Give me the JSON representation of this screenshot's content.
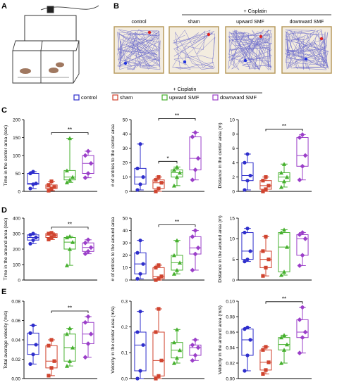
{
  "panel_letters": {
    "A": "A",
    "B": "B",
    "C": "C",
    "D": "D",
    "E": "E"
  },
  "cisplatin_label": "+ Cisplatin",
  "track_titles": [
    "control",
    "sham",
    "upward SMF",
    "downward SMF"
  ],
  "legend": [
    {
      "label": "control",
      "color": "#2e2ecc"
    },
    {
      "label": "sham",
      "color": "#d0442f"
    },
    {
      "label": "upward SMF",
      "color": "#46b02e"
    },
    {
      "label": "downward SMF",
      "color": "#9b3fc9"
    }
  ],
  "group_colors": [
    "#2e2ecc",
    "#d0442f",
    "#46b02e",
    "#9b3fc9"
  ],
  "group_markers": [
    "circle",
    "square",
    "triangle",
    "diamond"
  ],
  "colors": {
    "track_line": "#6a6acb",
    "track_border": "#b89b5e",
    "track_bg": "#f3ecdf",
    "axis": "#000000"
  },
  "chart_data": [
    {
      "type": "box",
      "ylabel": "Time in the center area (sec)",
      "yticks": [
        "0",
        "50",
        "100",
        "150",
        "200"
      ],
      "ylim": [
        0,
        200
      ],
      "values": [
        [
          8,
          20,
          22,
          50,
          55
        ],
        [
          2,
          8,
          12,
          18,
          28
        ],
        [
          25,
          32,
          40,
          58,
          148
        ],
        [
          38,
          50,
          78,
          100,
          112
        ]
      ],
      "sig": {
        "label": "**",
        "from": 1,
        "to": 3
      }
    },
    {
      "type": "box",
      "ylabel": "# of entries to the center area",
      "yticks": [
        "0",
        "10",
        "20",
        "30",
        "40",
        "50"
      ],
      "ylim": [
        0,
        50
      ],
      "values": [
        [
          1,
          5,
          10,
          16,
          33
        ],
        [
          0,
          2,
          6,
          8,
          10
        ],
        [
          4,
          10,
          13,
          15,
          17
        ],
        [
          8,
          15,
          23,
          38,
          41
        ]
      ],
      "sig": [
        {
          "label": "**",
          "from": 1,
          "to": 3
        },
        {
          "label": "*",
          "from": 1,
          "to": 2
        }
      ]
    },
    {
      "type": "box",
      "ylabel": "Distance in the center area (m)",
      "yticks": [
        "0",
        "2",
        "4",
        "6",
        "8",
        "10"
      ],
      "ylim": [
        0,
        10
      ],
      "values": [
        [
          0.2,
          1.5,
          2.2,
          4,
          5.2
        ],
        [
          0,
          0.3,
          0.8,
          1.5,
          2
        ],
        [
          0.6,
          1.4,
          2,
          2.6,
          3.8
        ],
        [
          1.6,
          3.5,
          5,
          7.5,
          7.9
        ]
      ],
      "sig": {
        "label": "**",
        "from": 1,
        "to": 3
      }
    },
    {
      "type": "box",
      "ylabel": "Time in the around area (sec)",
      "yticks": [
        "0",
        "100",
        "200",
        "300",
        "400"
      ],
      "ylim": [
        0,
        400
      ],
      "values": [
        [
          235,
          258,
          275,
          292,
          300
        ],
        [
          262,
          275,
          290,
          300,
          305
        ],
        [
          95,
          200,
          245,
          275,
          282
        ],
        [
          170,
          185,
          210,
          240,
          260
        ]
      ],
      "sig": {
        "label": "**",
        "from": 1,
        "to": 3
      }
    },
    {
      "type": "box",
      "ylabel": "# of entries to the around area",
      "yticks": [
        "0",
        "10",
        "20",
        "30",
        "40",
        "50"
      ],
      "ylim": [
        0,
        50
      ],
      "values": [
        [
          1,
          5,
          13,
          22,
          32
        ],
        [
          0,
          1,
          3,
          10,
          12
        ],
        [
          5,
          8,
          14,
          20,
          32
        ],
        [
          8,
          21,
          26,
          35,
          40
        ]
      ],
      "sig": {
        "label": "**",
        "from": 1,
        "to": 3
      }
    },
    {
      "type": "box",
      "ylabel": "Distance in the around area (m)",
      "yticks": [
        "0",
        "5",
        "10",
        "15"
      ],
      "ylim": [
        0,
        15
      ],
      "values": [
        [
          4.5,
          5,
          7,
          11.5,
          12.5
        ],
        [
          1,
          3,
          5,
          7,
          10.5
        ],
        [
          1.2,
          2,
          8,
          11.5,
          12.2
        ],
        [
          3.5,
          6,
          10,
          11,
          11.5
        ]
      ]
    },
    {
      "type": "box",
      "ylabel": "Total average velocity (m/s)",
      "yticks": [
        "0.00",
        "0.02",
        "0.04",
        "0.06",
        "0.08"
      ],
      "ylim": [
        0,
        0.08
      ],
      "values": [
        [
          0.015,
          0.025,
          0.035,
          0.047,
          0.055
        ],
        [
          0.003,
          0.011,
          0.018,
          0.034,
          0.04
        ],
        [
          0.013,
          0.018,
          0.032,
          0.046,
          0.052
        ],
        [
          0.022,
          0.036,
          0.046,
          0.058,
          0.064
        ]
      ],
      "sig": {
        "label": "**",
        "from": 1,
        "to": 3
      }
    },
    {
      "type": "box",
      "ylabel": "Velocity in the center area (m/s)",
      "yticks": [
        "0.0",
        "0.1",
        "0.2",
        "0.3"
      ],
      "ylim": [
        0,
        0.3
      ],
      "values": [
        [
          0,
          0.03,
          0.13,
          0.18,
          0.26
        ],
        [
          0,
          0.01,
          0.07,
          0.18,
          0.27
        ],
        [
          0.06,
          0.08,
          0.11,
          0.14,
          0.19
        ],
        [
          0.07,
          0.09,
          0.12,
          0.13,
          0.15
        ]
      ]
    },
    {
      "type": "box",
      "ylabel": "Velocity in the around area (m/s)",
      "yticks": [
        "0.00",
        "0.02",
        "0.04",
        "0.06",
        "0.08",
        "0.10"
      ],
      "ylim": [
        0,
        0.1
      ],
      "values": [
        [
          0.01,
          0.03,
          0.05,
          0.064,
          0.066
        ],
        [
          0.006,
          0.011,
          0.021,
          0.037,
          0.041
        ],
        [
          0.02,
          0.037,
          0.044,
          0.053,
          0.056
        ],
        [
          0.033,
          0.053,
          0.06,
          0.076,
          0.092
        ]
      ],
      "sig": {
        "label": "**",
        "from": 1,
        "to": 3
      }
    }
  ]
}
